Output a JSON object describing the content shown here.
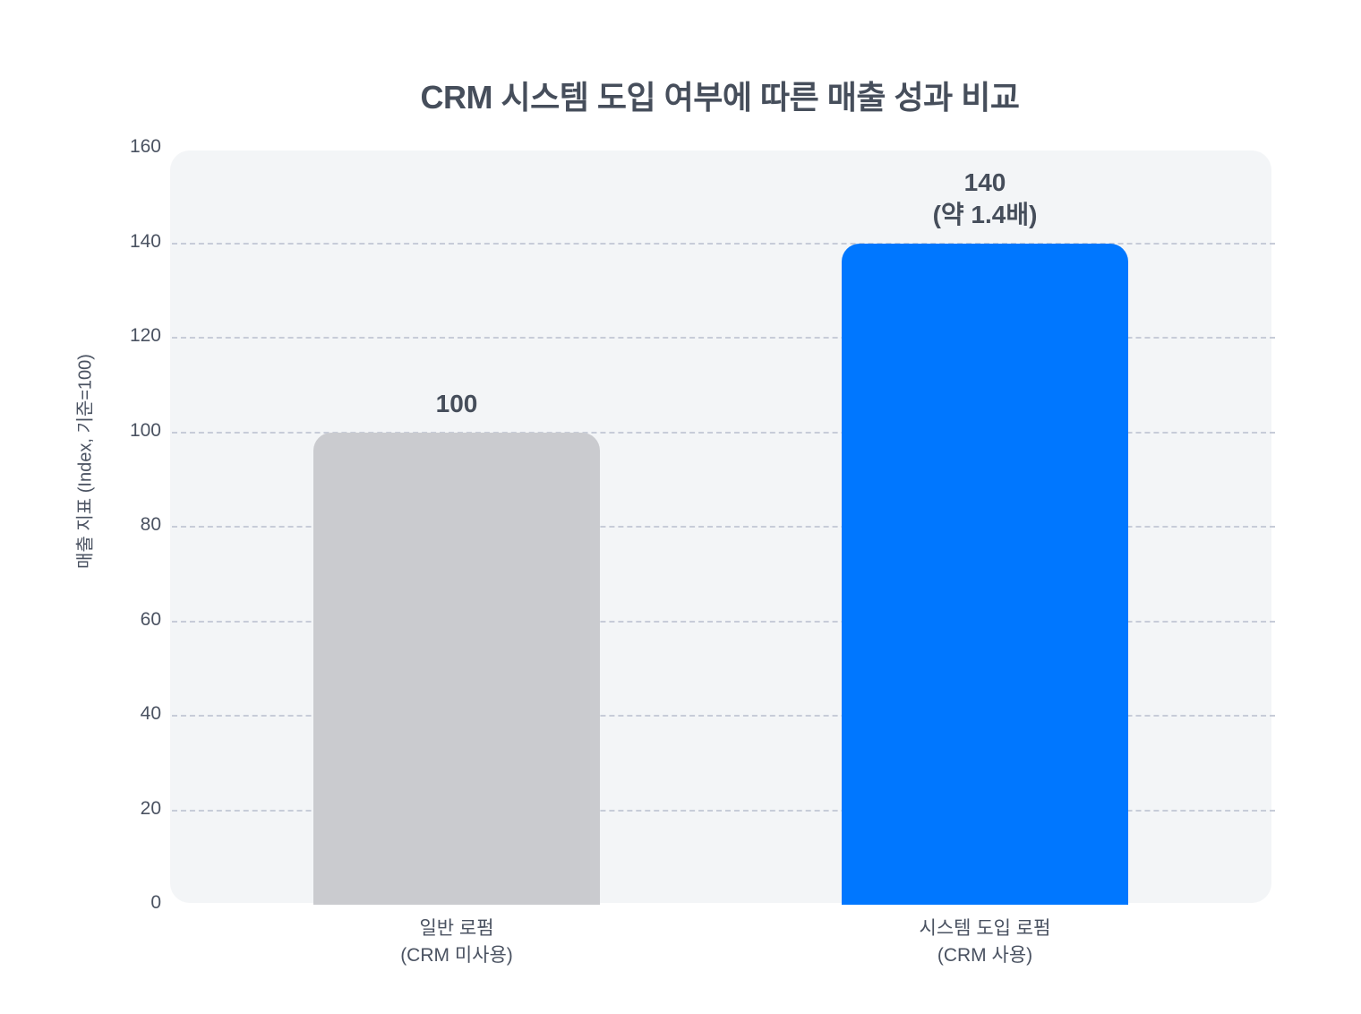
{
  "chart_data": {
    "type": "bar",
    "title": "CRM 시스템 도입 여부에 따른 매출 성과 비교",
    "xlabel": "",
    "ylabel": "매출 지표 (Index, 기준=100)",
    "ylim": [
      0,
      160
    ],
    "yticks": [
      "0",
      "20",
      "40",
      "60",
      "80",
      "100",
      "120",
      "140",
      "160"
    ],
    "grid": true,
    "legend": null,
    "categories": [
      "일반 로펌 (CRM 미사용)",
      "시스템 도입 로펌 (CRM 사용)"
    ],
    "category_lines": [
      [
        "일반 로펌",
        "(CRM 미사용)"
      ],
      [
        "시스템 도입 로펌",
        "(CRM 사용)"
      ]
    ],
    "values": [
      100,
      140
    ],
    "bar_colors": [
      "#cacbcf",
      "#0077ff"
    ],
    "annotations": [
      {
        "lines": [
          "100"
        ]
      },
      {
        "lines": [
          "140",
          "(약 1.4배)"
        ]
      }
    ]
  },
  "colors": {
    "plot_background": "#f3f5f7",
    "gridline": "#c7ccd8",
    "text": "#4a5261",
    "title": "#464e5b"
  }
}
